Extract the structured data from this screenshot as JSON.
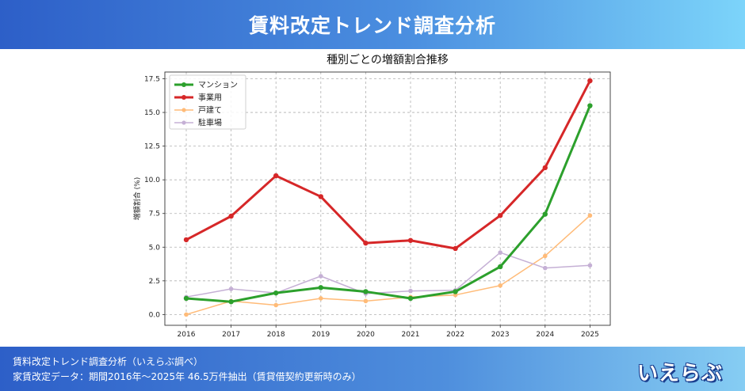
{
  "header": {
    "title": "賃料改定トレンド調査分析"
  },
  "footer": {
    "line1": "賃料改定トレンド調査分析（いえらぶ調べ）",
    "line2": "家賃改定データ：期間2016年～2025年 46.5万件抽出（賃貸借契約更新時のみ）",
    "logo_text": "いえらぶ"
  },
  "chart_data": {
    "type": "line",
    "title": "種別ごとの増額割合推移",
    "xlabel": "",
    "ylabel": "増額割合 (%)",
    "x": [
      2016,
      2017,
      2018,
      2019,
      2020,
      2021,
      2022,
      2023,
      2024,
      2025
    ],
    "x_tick_labels": [
      "2016",
      "2017",
      "2018",
      "2019",
      "2020",
      "2021",
      "2022",
      "2023",
      "2024",
      "2025"
    ],
    "ylim": [
      -0.8,
      18.0
    ],
    "y_ticks": [
      0.0,
      2.5,
      5.0,
      7.5,
      10.0,
      12.5,
      15.0,
      17.5
    ],
    "y_tick_labels": [
      "0.0",
      "2.5",
      "5.0",
      "7.5",
      "10.0",
      "12.5",
      "15.0",
      "17.5"
    ],
    "grid": true,
    "legend_position": "top-left",
    "series": [
      {
        "name": "マンション",
        "color": "#2ca02c",
        "width": 3,
        "values": [
          1.2,
          0.95,
          1.6,
          2.0,
          1.7,
          1.2,
          1.7,
          3.55,
          7.45,
          15.5
        ]
      },
      {
        "name": "事業用",
        "color": "#d62728",
        "width": 3,
        "values": [
          5.55,
          7.3,
          10.3,
          8.75,
          5.3,
          5.5,
          4.9,
          7.35,
          10.9,
          17.35
        ]
      },
      {
        "name": "戸建て",
        "color": "#ffbb78",
        "width": 1.5,
        "values": [
          0.0,
          1.0,
          0.7,
          1.2,
          1.0,
          1.3,
          1.45,
          2.15,
          4.35,
          7.35
        ]
      },
      {
        "name": "駐車場",
        "color": "#c5b0d5",
        "width": 1.5,
        "values": [
          1.3,
          1.9,
          1.6,
          2.85,
          1.55,
          1.75,
          1.8,
          4.6,
          3.45,
          3.65
        ]
      }
    ]
  }
}
